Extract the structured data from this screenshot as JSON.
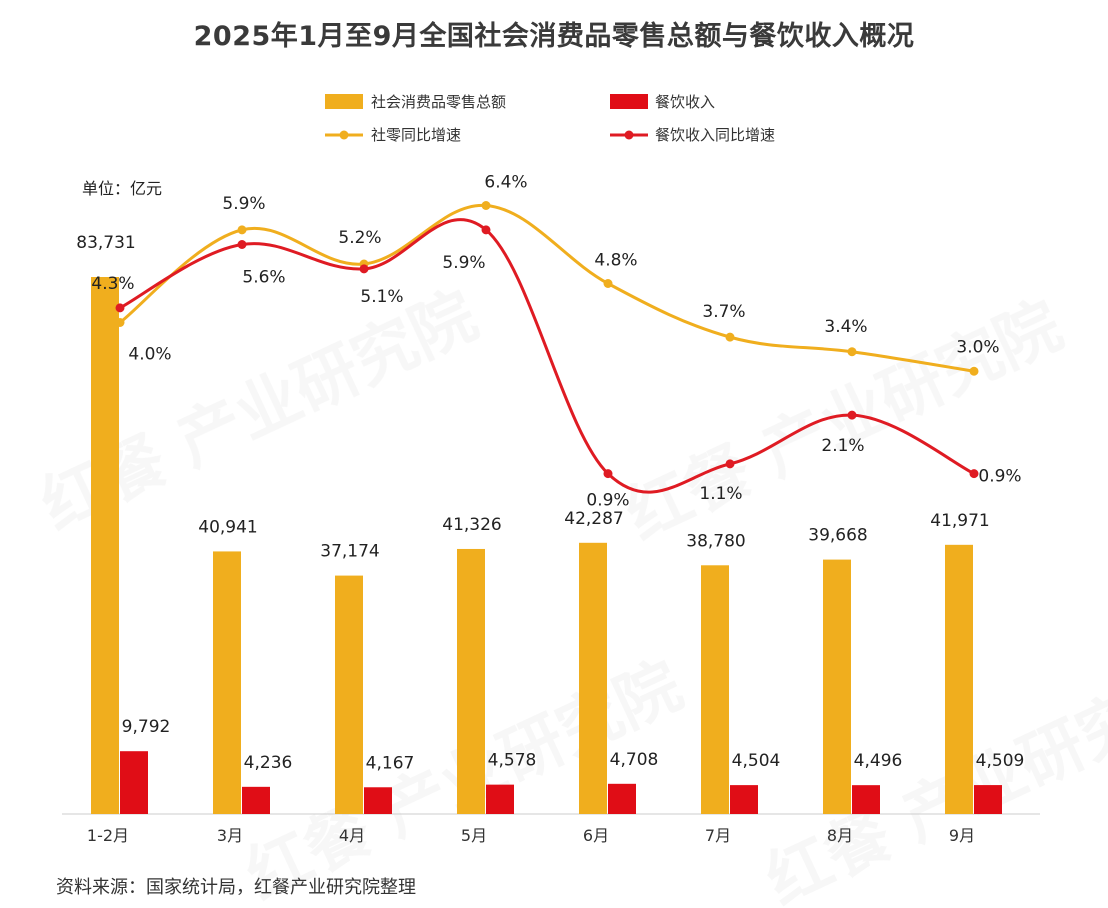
{
  "title": "2025年1月至9月全国社会消费品零售总额与餐饮收入概况",
  "unit_label": "单位：亿元",
  "source": "资料来源：国家统计局，红餐产业研究院整理",
  "watermark": "红餐 产业研究院",
  "colors": {
    "retail": "#F0AE1E",
    "catering": "#E00D16",
    "retail_line": "#F0AE1E",
    "catering_line": "#DF1B23"
  },
  "chart_data": {
    "type": "bar+line",
    "categories": [
      "1-2月",
      "3月",
      "4月",
      "5月",
      "6月",
      "7月",
      "8月",
      "9月"
    ],
    "series": [
      {
        "name": "社会消费品零售总额",
        "type": "bar",
        "values": [
          83731,
          40941,
          37174,
          41326,
          42287,
          38780,
          39668,
          41971
        ],
        "labels": [
          "83,731",
          "40,941",
          "37,174",
          "41,326",
          "42,287",
          "38,780",
          "39,668",
          "41,971"
        ]
      },
      {
        "name": "餐饮收入",
        "type": "bar",
        "values": [
          9792,
          4236,
          4167,
          4578,
          4708,
          4504,
          4496,
          4509
        ],
        "labels": [
          "9,792",
          "4,236",
          "4,167",
          "4,578",
          "4,708",
          "4,504",
          "4,496",
          "4,509"
        ]
      },
      {
        "name": "社零同比增速",
        "type": "line",
        "values": [
          4.0,
          5.9,
          5.2,
          6.4,
          4.8,
          3.7,
          3.4,
          3.0
        ],
        "labels": [
          "4.0%",
          "5.9%",
          "5.2%",
          "6.4%",
          "4.8%",
          "3.7%",
          "3.4%",
          "3.0%"
        ]
      },
      {
        "name": "餐饮收入同比增速",
        "type": "line",
        "values": [
          4.3,
          5.6,
          5.1,
          5.9,
          0.9,
          1.1,
          2.1,
          0.9
        ],
        "labels": [
          "4.3%",
          "5.6%",
          "5.1%",
          "5.9%",
          "0.9%",
          "1.1%",
          "2.1%",
          "0.9%"
        ]
      }
    ],
    "legend_position": "top",
    "grid": false
  }
}
